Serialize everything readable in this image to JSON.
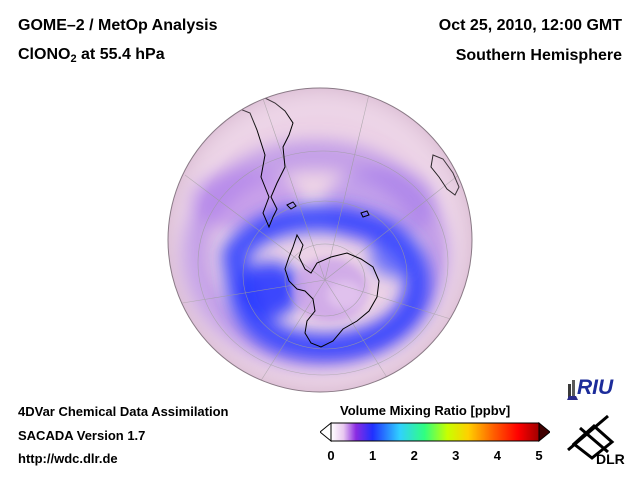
{
  "header": {
    "title_line1": "GOME–2 / MetOp Analysis",
    "species": "ClONO",
    "species_sub": "2",
    "level_text": " at 55.4 hPa",
    "datetime": "Oct 25, 2010, 12:00 GMT",
    "region": "Southern Hemisphere"
  },
  "footer": {
    "line1": "4DVar Chemical Data Assimilation",
    "line2": "SACADA Version 1.7",
    "line3": "http://wdc.dlr.de"
  },
  "colorbar": {
    "title": "Volume Mixing Ratio [ppbv]",
    "ticks": [
      "0",
      "1",
      "2",
      "3",
      "4",
      "5"
    ],
    "range": [
      0,
      5
    ],
    "colors": [
      "#ffffff",
      "#e8c8f0",
      "#8a2be2",
      "#2030ff",
      "#30d0ff",
      "#30ff80",
      "#c8ff00",
      "#ffd000",
      "#ff6000",
      "#ff0000",
      "#a00000"
    ]
  },
  "logos": {
    "riu": "RIU",
    "dlr": "DLR"
  },
  "map": {
    "colors": {
      "background": "#ecd2e6",
      "low": "#2838ff",
      "mid": "#9a6cf0",
      "coast": "#000000",
      "grid": "#a0a0a0"
    }
  }
}
